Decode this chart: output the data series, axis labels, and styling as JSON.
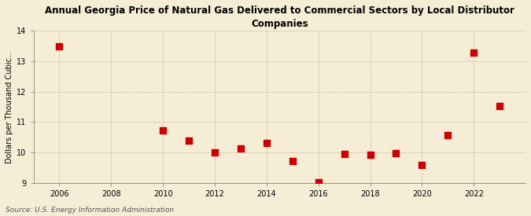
{
  "title": "Annual Georgia Price of Natural Gas Delivered to Commercial Sectors by Local Distributor\nCompanies",
  "ylabel": "Dollars per Thousand Cubic...",
  "source": "Source: U.S. Energy Information Administration",
  "years": [
    2006,
    2010,
    2011,
    2012,
    2013,
    2014,
    2015,
    2016,
    2017,
    2018,
    2019,
    2020,
    2021,
    2022,
    2023
  ],
  "values": [
    13.5,
    10.72,
    10.38,
    10.0,
    10.12,
    10.32,
    9.72,
    9.02,
    9.94,
    9.93,
    9.98,
    9.58,
    10.57,
    13.3,
    11.52
  ],
  "xlim": [
    2005.0,
    2024.0
  ],
  "ylim": [
    9,
    14
  ],
  "yticks": [
    9,
    10,
    11,
    12,
    13,
    14
  ],
  "xticks": [
    2006,
    2008,
    2010,
    2012,
    2014,
    2016,
    2018,
    2020,
    2022
  ],
  "marker_color": "#cc0000",
  "marker_size": 28,
  "background_color": "#f5edd6",
  "grid_color": "#c8b89a",
  "title_fontsize": 8.5,
  "axis_fontsize": 7,
  "tick_fontsize": 7,
  "source_fontsize": 6.5,
  "spine_color": "#888888"
}
